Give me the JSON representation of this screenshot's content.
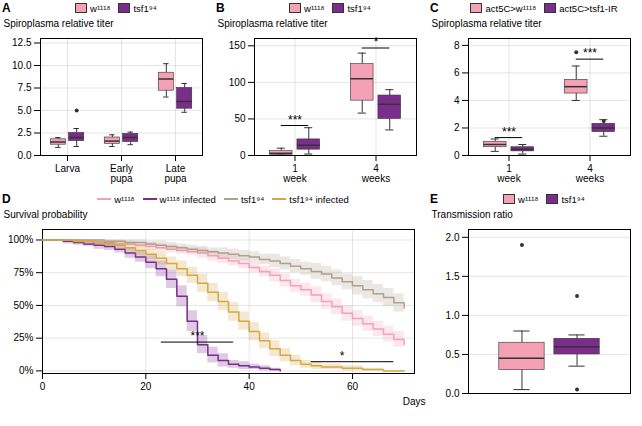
{
  "chart_data": [
    {
      "type": "box",
      "title": "A",
      "categories": [
        "Larva",
        "Early\npupa",
        "Late\npupa"
      ],
      "series": [
        {
          "name": "w¹¹¹⁸",
          "color": "#f4a0b5",
          "boxes": [
            {
              "med": 1.5,
              "q1": 1.2,
              "q3": 1.8,
              "whislo": 0.9,
              "whishi": 2.0,
              "fliers": []
            },
            {
              "med": 1.6,
              "q1": 1.3,
              "q3": 2.0,
              "whislo": 1.0,
              "whishi": 2.3,
              "fliers": []
            },
            {
              "med": 8.5,
              "q1": 7.2,
              "q3": 9.2,
              "whislo": 6.5,
              "whishi": 10.2,
              "fliers": []
            }
          ]
        },
        {
          "name": "tsf1⁹⁴",
          "color": "#7b2d8b",
          "boxes": [
            {
              "med": 2.0,
              "q1": 1.6,
              "q3": 2.5,
              "whislo": 1.0,
              "whishi": 3.0,
              "fliers": [
                5.0
              ]
            },
            {
              "med": 2.0,
              "q1": 1.5,
              "q3": 2.4,
              "whislo": 1.2,
              "whishi": 2.6,
              "fliers": []
            },
            {
              "med": 6.0,
              "q1": 5.2,
              "q3": 7.5,
              "whislo": 4.8,
              "whishi": 8.0,
              "fliers": []
            }
          ]
        }
      ],
      "ylim": [
        0,
        13
      ],
      "yticks": [
        {
          "value": 0,
          "label": "0.0"
        },
        2.5,
        {
          "value": 5,
          "label": "5.0"
        },
        7.5,
        {
          "value": 10,
          "label": "10.0"
        },
        12.5
      ],
      "ylabel": "Spiroplasma relative titer",
      "grid": true,
      "legend": "top"
    },
    {
      "type": "box",
      "title": "B",
      "categories": [
        "1\nweek",
        "4\nweeks"
      ],
      "series": [
        {
          "name": "w¹¹¹⁸",
          "color": "#f4a0b5",
          "boxes": [
            {
              "med": 3.0,
              "q1": 1.0,
              "q3": 6.0,
              "whislo": 0.5,
              "whishi": 10.0,
              "fliers": []
            },
            {
              "med": 105.0,
              "q1": 75.0,
              "q3": 125.0,
              "whislo": 58.0,
              "whishi": 140.0,
              "fliers": []
            }
          ]
        },
        {
          "name": "tsf1⁹⁴",
          "color": "#7b2d8b",
          "boxes": [
            {
              "med": 14.0,
              "q1": 8.0,
              "q3": 22.0,
              "whislo": 2.0,
              "whishi": 38.0,
              "fliers": []
            },
            {
              "med": 70.0,
              "q1": 50.0,
              "q3": 82.0,
              "whislo": 35.0,
              "whishi": 90.0,
              "fliers": []
            }
          ]
        }
      ],
      "annotations": [
        {
          "text": "***",
          "category": "1\nweek",
          "y": 41
        },
        {
          "text": "*",
          "category": "4\nweeks",
          "y": 147
        }
      ],
      "ylim": [
        0,
        160
      ],
      "yticks": [
        0,
        50,
        100,
        150
      ],
      "ylabel": "Spiroplasma relative titer",
      "grid": true,
      "legend": "top"
    },
    {
      "type": "box",
      "title": "C",
      "categories": [
        "1\nweek",
        "4\nweeks"
      ],
      "series": [
        {
          "name": "act5C>w¹¹¹⁸",
          "color": "#f4a0b5",
          "boxes": [
            {
              "med": 0.8,
              "q1": 0.6,
              "q3": 1.0,
              "whislo": 0.3,
              "whishi": 1.2,
              "fliers": []
            },
            {
              "med": 5.0,
              "q1": 4.5,
              "q3": 5.5,
              "whislo": 4.0,
              "whishi": 6.5,
              "fliers": [
                7.5
              ]
            }
          ]
        },
        {
          "name": "act5C>tsf1-IR",
          "color": "#7b2d8b",
          "boxes": [
            {
              "med": 0.45,
              "q1": 0.3,
              "q3": 0.6,
              "whislo": 0.1,
              "whishi": 0.8,
              "fliers": []
            },
            {
              "med": 2.0,
              "q1": 1.7,
              "q3": 2.3,
              "whislo": 1.4,
              "whishi": 2.6,
              "fliers": [
                2.5
              ]
            }
          ]
        }
      ],
      "annotations": [
        {
          "text": "***",
          "category": "1\nweek",
          "y": 1.3
        },
        {
          "text": "***",
          "category": "4\nweeks",
          "y": 7.0
        }
      ],
      "ylim": [
        0,
        8.5
      ],
      "yticks": [
        0,
        2,
        4,
        6,
        8
      ],
      "ylabel": "Spiroplasma relative titer",
      "grid": true,
      "legend": "top"
    },
    {
      "type": "step",
      "title": "D",
      "series": [
        {
          "name": "w¹¹¹⁸",
          "color": "#f4a0b5",
          "x": [
            0,
            2,
            4,
            6,
            8,
            10,
            12,
            14,
            16,
            18,
            20,
            22,
            24,
            26,
            28,
            30,
            32,
            34,
            36,
            38,
            40,
            42,
            44,
            46,
            48,
            50,
            52,
            54,
            56,
            58,
            60,
            62,
            64,
            66,
            68,
            70
          ],
          "values": [
            1.0,
            1.0,
            1.0,
            0.99,
            0.99,
            0.98,
            0.98,
            0.97,
            0.97,
            0.96,
            0.95,
            0.94,
            0.93,
            0.92,
            0.91,
            0.9,
            0.88,
            0.86,
            0.84,
            0.82,
            0.79,
            0.76,
            0.73,
            0.69,
            0.65,
            0.62,
            0.58,
            0.53,
            0.49,
            0.44,
            0.4,
            0.36,
            0.32,
            0.28,
            0.24,
            0.2
          ],
          "ci_low": [
            1.0,
            1.0,
            1.0,
            0.97,
            0.97,
            0.96,
            0.96,
            0.95,
            0.95,
            0.94,
            0.92,
            0.91,
            0.9,
            0.89,
            0.88,
            0.86,
            0.84,
            0.82,
            0.8,
            0.78,
            0.75,
            0.72,
            0.68,
            0.64,
            0.6,
            0.57,
            0.52,
            0.47,
            0.43,
            0.38,
            0.34,
            0.3,
            0.26,
            0.22,
            0.18,
            0.14
          ],
          "ci_high": [
            1.0,
            1.0,
            1.0,
            1.0,
            1.0,
            1.0,
            1.0,
            1.0,
            0.99,
            0.98,
            0.98,
            0.97,
            0.96,
            0.95,
            0.94,
            0.94,
            0.92,
            0.9,
            0.88,
            0.86,
            0.83,
            0.8,
            0.78,
            0.74,
            0.7,
            0.67,
            0.64,
            0.59,
            0.55,
            0.5,
            0.46,
            0.42,
            0.38,
            0.34,
            0.3,
            0.26
          ]
        },
        {
          "name": "w¹¹¹⁸ infected",
          "color": "#7b2d8b",
          "x": [
            0,
            2,
            4,
            6,
            8,
            10,
            12,
            14,
            16,
            18,
            20,
            22,
            24,
            26,
            28,
            30,
            32,
            34,
            36,
            38,
            40,
            42,
            44,
            46
          ],
          "values": [
            1.0,
            1.0,
            0.99,
            0.98,
            0.97,
            0.96,
            0.95,
            0.93,
            0.9,
            0.87,
            0.83,
            0.78,
            0.7,
            0.57,
            0.38,
            0.2,
            0.12,
            0.08,
            0.05,
            0.04,
            0.03,
            0.02,
            0.01,
            0.0
          ],
          "ci_low": [
            1.0,
            1.0,
            0.97,
            0.96,
            0.95,
            0.93,
            0.92,
            0.9,
            0.86,
            0.83,
            0.78,
            0.72,
            0.63,
            0.49,
            0.3,
            0.13,
            0.06,
            0.03,
            0.02,
            0.01,
            0.01,
            0.0,
            0.0,
            0.0
          ],
          "ci_high": [
            1.0,
            1.0,
            1.0,
            1.0,
            0.99,
            0.99,
            0.98,
            0.96,
            0.94,
            0.91,
            0.88,
            0.84,
            0.77,
            0.65,
            0.46,
            0.27,
            0.18,
            0.13,
            0.08,
            0.07,
            0.05,
            0.04,
            0.02,
            0.0
          ]
        },
        {
          "name": "tsf1⁹⁴",
          "color": "#b0a090",
          "x": [
            0,
            2,
            4,
            6,
            8,
            10,
            12,
            14,
            16,
            18,
            20,
            22,
            24,
            26,
            28,
            30,
            32,
            34,
            36,
            38,
            40,
            42,
            44,
            46,
            48,
            50,
            52,
            54,
            56,
            58,
            60,
            62,
            64,
            66,
            68,
            70
          ],
          "values": [
            1.0,
            1.0,
            1.0,
            1.0,
            1.0,
            1.0,
            0.99,
            0.99,
            0.98,
            0.98,
            0.97,
            0.96,
            0.95,
            0.94,
            0.93,
            0.92,
            0.91,
            0.9,
            0.89,
            0.88,
            0.87,
            0.85,
            0.84,
            0.82,
            0.8,
            0.78,
            0.76,
            0.74,
            0.71,
            0.68,
            0.65,
            0.62,
            0.59,
            0.56,
            0.52,
            0.48
          ],
          "ci_low": [
            1.0,
            1.0,
            1.0,
            1.0,
            1.0,
            1.0,
            0.97,
            0.97,
            0.96,
            0.96,
            0.95,
            0.93,
            0.92,
            0.91,
            0.9,
            0.89,
            0.88,
            0.86,
            0.85,
            0.84,
            0.83,
            0.81,
            0.79,
            0.77,
            0.75,
            0.73,
            0.7,
            0.68,
            0.65,
            0.62,
            0.58,
            0.55,
            0.52,
            0.49,
            0.45,
            0.4
          ],
          "ci_high": [
            1.0,
            1.0,
            1.0,
            1.0,
            1.0,
            1.0,
            1.0,
            1.0,
            1.0,
            1.0,
            0.99,
            0.99,
            0.98,
            0.97,
            0.96,
            0.95,
            0.94,
            0.94,
            0.93,
            0.92,
            0.91,
            0.89,
            0.89,
            0.87,
            0.85,
            0.83,
            0.82,
            0.8,
            0.77,
            0.74,
            0.72,
            0.69,
            0.66,
            0.63,
            0.59,
            0.56
          ]
        },
        {
          "name": "tsf1⁹⁴ infected",
          "color": "#d4a843",
          "x": [
            0,
            2,
            4,
            6,
            8,
            10,
            12,
            14,
            16,
            18,
            20,
            22,
            24,
            26,
            28,
            30,
            32,
            34,
            36,
            38,
            40,
            42,
            44,
            46,
            48,
            50,
            52,
            54,
            56,
            58,
            60,
            62,
            64,
            66,
            68,
            70
          ],
          "values": [
            1.0,
            1.0,
            1.0,
            0.99,
            0.99,
            0.98,
            0.97,
            0.96,
            0.94,
            0.92,
            0.89,
            0.86,
            0.82,
            0.78,
            0.73,
            0.67,
            0.6,
            0.53,
            0.45,
            0.38,
            0.3,
            0.23,
            0.17,
            0.12,
            0.08,
            0.05,
            0.04,
            0.03,
            0.03,
            0.02,
            0.02,
            0.01,
            0.01,
            0.0,
            0.0,
            0.0
          ],
          "ci_low": [
            1.0,
            1.0,
            1.0,
            0.97,
            0.97,
            0.96,
            0.95,
            0.93,
            0.91,
            0.88,
            0.85,
            0.81,
            0.77,
            0.72,
            0.67,
            0.6,
            0.53,
            0.46,
            0.38,
            0.31,
            0.23,
            0.17,
            0.11,
            0.07,
            0.04,
            0.02,
            0.01,
            0.01,
            0.01,
            0.0,
            0.0,
            0.0,
            0.0,
            0.0,
            0.0,
            0.0
          ],
          "ci_high": [
            1.0,
            1.0,
            1.0,
            1.0,
            1.0,
            1.0,
            0.99,
            0.99,
            0.97,
            0.96,
            0.93,
            0.91,
            0.87,
            0.84,
            0.79,
            0.74,
            0.67,
            0.6,
            0.52,
            0.45,
            0.37,
            0.29,
            0.23,
            0.17,
            0.12,
            0.08,
            0.07,
            0.05,
            0.05,
            0.04,
            0.04,
            0.02,
            0.02,
            0.0,
            0.0,
            0.0
          ]
        }
      ],
      "annotations": [
        {
          "text": "***",
          "x": 30,
          "y": 0.22,
          "x1": 23,
          "x2": 37
        },
        {
          "text": "*",
          "x": 58,
          "y": 0.07,
          "x1": 52,
          "x2": 68
        }
      ],
      "xlim": [
        0,
        72
      ],
      "xticks": [
        0,
        20,
        40,
        60
      ],
      "ylim": [
        -0.02,
        1.08
      ],
      "yticks": [
        {
          "value": 0,
          "label": "0%"
        },
        {
          "value": 0.25,
          "label": "25%"
        },
        {
          "value": 0.5,
          "label": "50%"
        },
        {
          "value": 0.75,
          "label": "75%"
        },
        {
          "value": 1.0,
          "label": "100%"
        }
      ],
      "xlabel": "Days",
      "ylabel": "Survival probability",
      "grid": true,
      "legend": "top"
    },
    {
      "type": "box",
      "title": "E",
      "series": [
        {
          "name": "w¹¹¹⁸",
          "color": "#f4a0b5",
          "boxes": [
            {
              "med": 0.45,
              "q1": 0.3,
              "q3": 0.65,
              "whislo": 0.05,
              "whishi": 0.8,
              "fliers": [
                1.9
              ]
            }
          ]
        },
        {
          "name": "tsf1⁹⁴",
          "color": "#7b2d8b",
          "boxes": [
            {
              "med": 0.6,
              "q1": 0.5,
              "q3": 0.7,
              "whislo": 0.35,
              "whishi": 0.75,
              "fliers": [
                1.25,
                0.05
              ]
            }
          ]
        }
      ],
      "ylim": [
        0,
        2.1
      ],
      "yticks": [
        {
          "value": 0,
          "label": "0.0"
        },
        0.5,
        {
          "value": 1,
          "label": "1.0"
        },
        1.5,
        {
          "value": 2,
          "label": "2.0"
        }
      ],
      "ylabel": "Transmission ratio",
      "grid": true,
      "legend": "top",
      "tick_labels": "y"
    }
  ]
}
